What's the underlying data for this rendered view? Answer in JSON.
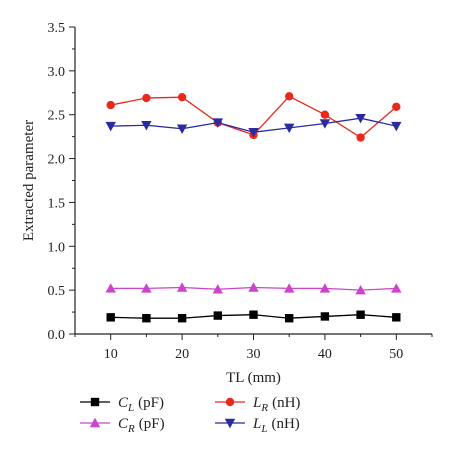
{
  "chart_data": {
    "type": "line",
    "title": "",
    "xlabel": "TL (mm)",
    "ylabel": "Extracted parameter",
    "xlim": [
      5,
      55
    ],
    "ylim": [
      0,
      3.5
    ],
    "xticks": [
      10,
      20,
      30,
      40,
      50
    ],
    "yticks": [
      0.0,
      0.5,
      1.0,
      1.5,
      2.0,
      2.5,
      3.0,
      3.5
    ],
    "xtick_labels": [
      "10",
      "20",
      "30",
      "40",
      "50"
    ],
    "ytick_labels": [
      "0.0",
      "0.5",
      "1.0",
      "1.5",
      "2.0",
      "2.5",
      "3.0",
      "3.5"
    ],
    "grid": false,
    "legend_position": "bottom",
    "x": [
      10,
      15,
      20,
      25,
      30,
      35,
      40,
      45,
      50
    ],
    "series": [
      {
        "name": "C_L (pF)",
        "symbol": "C",
        "subscript": "L",
        "unit": "(pF)",
        "color": "#000000",
        "marker": "square",
        "values": [
          0.19,
          0.18,
          0.18,
          0.21,
          0.22,
          0.18,
          0.2,
          0.22,
          0.19
        ]
      },
      {
        "name": "C_R (pF)",
        "symbol": "C",
        "subscript": "R",
        "unit": "(pF)",
        "color": "#cc44cc",
        "marker": "triangle-up",
        "values": [
          0.52,
          0.52,
          0.53,
          0.51,
          0.53,
          0.52,
          0.52,
          0.5,
          0.52
        ]
      },
      {
        "name": "L_R (nH)",
        "symbol": "L",
        "subscript": "R",
        "unit": "(nH)",
        "color": "#e8291c",
        "marker": "circle",
        "values": [
          2.61,
          2.69,
          2.7,
          2.41,
          2.27,
          2.71,
          2.5,
          2.24,
          2.59
        ]
      },
      {
        "name": "L_L (nH)",
        "symbol": "L",
        "subscript": "L",
        "unit": "(nH)",
        "color": "#2b2ba0",
        "marker": "triangle-down",
        "values": [
          2.37,
          2.38,
          2.34,
          2.41,
          2.3,
          2.35,
          2.4,
          2.46,
          2.37
        ]
      }
    ]
  }
}
